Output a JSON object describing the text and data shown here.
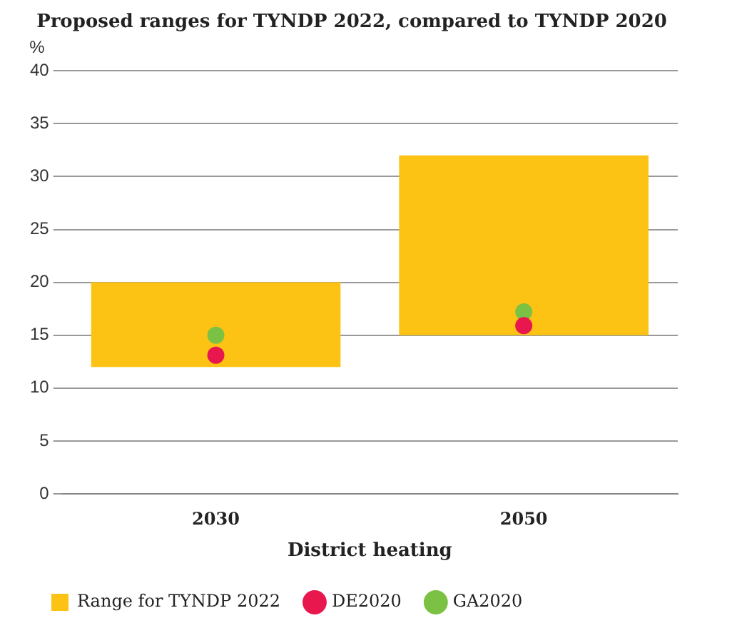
{
  "chart_data": {
    "type": "bar",
    "title": "Proposed ranges for TYNDP 2022, compared to TYNDP 2020",
    "xlabel": "District heating",
    "ylabel": "%",
    "categories": [
      "2030",
      "2050"
    ],
    "series": [
      {
        "name": "Range for TYNDP 2022",
        "color": "#fcc314",
        "base": [
          12,
          15
        ],
        "values": [
          8,
          17
        ]
      },
      {
        "name": "DE2020",
        "type": "scatter",
        "color": "#e8174d",
        "values": [
          13.1,
          15.9
        ]
      },
      {
        "name": "GA2020",
        "type": "scatter",
        "color": "#7bc143",
        "values": [
          15,
          17.2
        ]
      }
    ],
    "ylim": [
      0,
      40
    ],
    "yticks": [
      0,
      5,
      10,
      15,
      20,
      25,
      30,
      35,
      40
    ],
    "grid": "y",
    "legend": "bottom",
    "marker": "circle"
  }
}
